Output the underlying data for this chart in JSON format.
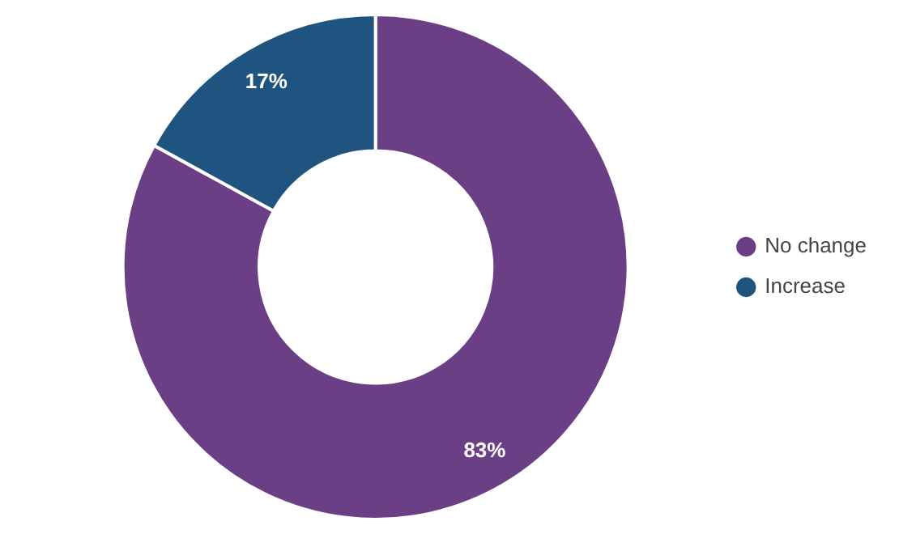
{
  "chart_data": {
    "type": "donut",
    "categories": [
      "No change",
      "Increase"
    ],
    "values": [
      83,
      17
    ],
    "colors": [
      "#6b3f86",
      "#1f5481"
    ],
    "legend": "right",
    "value_labels": [
      "83%",
      "17%"
    ]
  }
}
